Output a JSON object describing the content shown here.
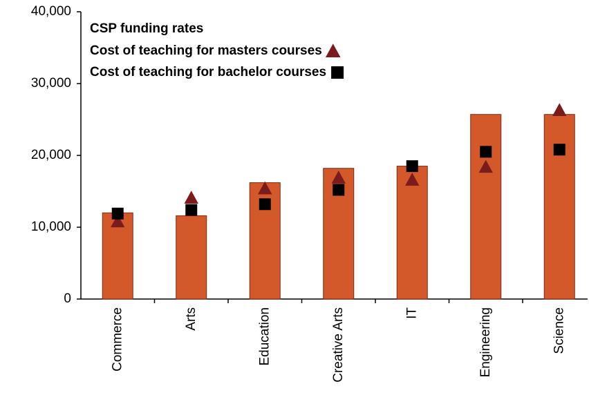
{
  "chart_data": {
    "type": "bar",
    "categories": [
      "Commerce",
      "Arts",
      "Education",
      "Creative Arts",
      "IT",
      "Engineering",
      "Science"
    ],
    "series": [
      {
        "name": "CSP funding rates",
        "type": "bar",
        "color": "#d4592a",
        "values": [
          12000,
          11600,
          16200,
          18200,
          18500,
          25700,
          25700
        ]
      },
      {
        "name": "Cost of teaching for masters courses",
        "type": "scatter",
        "marker": "triangle",
        "color": "#7a1c1c",
        "values": [
          10800,
          14100,
          15400,
          16900,
          16600,
          18400,
          26300
        ]
      },
      {
        "name": "Cost of teaching for bachelor courses",
        "type": "scatter",
        "marker": "square",
        "color": "#000000",
        "values": [
          11900,
          12400,
          13200,
          15200,
          18500,
          20500,
          20800
        ]
      }
    ],
    "ylim": [
      0,
      40000
    ],
    "yticks": [
      0,
      {
        "value": 10000,
        "label": "10,000"
      },
      {
        "value": 20000,
        "label": "20,000"
      },
      {
        "value": 30000,
        "label": "30,000"
      },
      {
        "value": 40000,
        "label": "40,000"
      }
    ],
    "grid": false,
    "legend": "top-left"
  }
}
